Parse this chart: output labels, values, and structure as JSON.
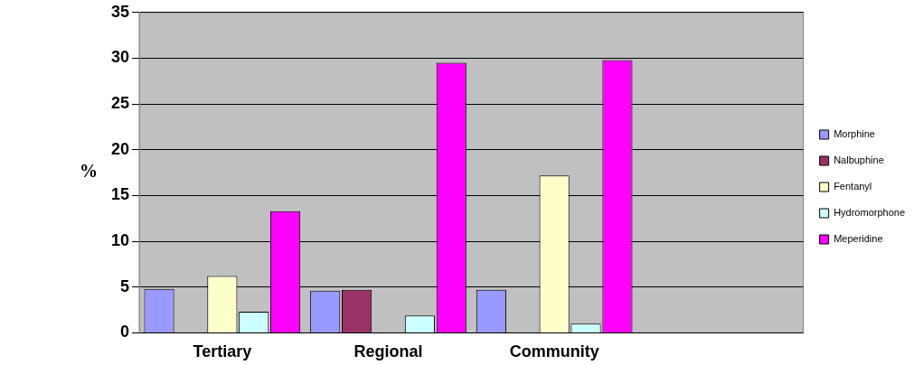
{
  "chart_data": {
    "type": "bar",
    "ylabel": "%",
    "categories": [
      "Tertiary",
      "Regional",
      "Community",
      null
    ],
    "series": [
      {
        "name": "Morphine",
        "color": "#9999ff",
        "values": [
          4.8,
          4.6,
          4.7,
          null
        ]
      },
      {
        "name": "Nalbuphine",
        "color": "#993366",
        "values": [
          0,
          4.7,
          0,
          null
        ]
      },
      {
        "name": "Fentanyl",
        "color": "#ffffcc",
        "values": [
          6.2,
          0,
          17.2,
          null
        ]
      },
      {
        "name": "Hydromorphone",
        "color": "#ccffff",
        "values": [
          2.3,
          1.9,
          1.0,
          null
        ]
      },
      {
        "name": "Meperidine",
        "color": "#ff00ff",
        "values": [
          13.3,
          29.5,
          29.8,
          null
        ]
      }
    ],
    "ylim": [
      0,
      35
    ],
    "yticks": [
      0,
      5,
      10,
      15,
      20,
      25,
      30,
      35
    ],
    "grid": "y",
    "legend": "right"
  }
}
